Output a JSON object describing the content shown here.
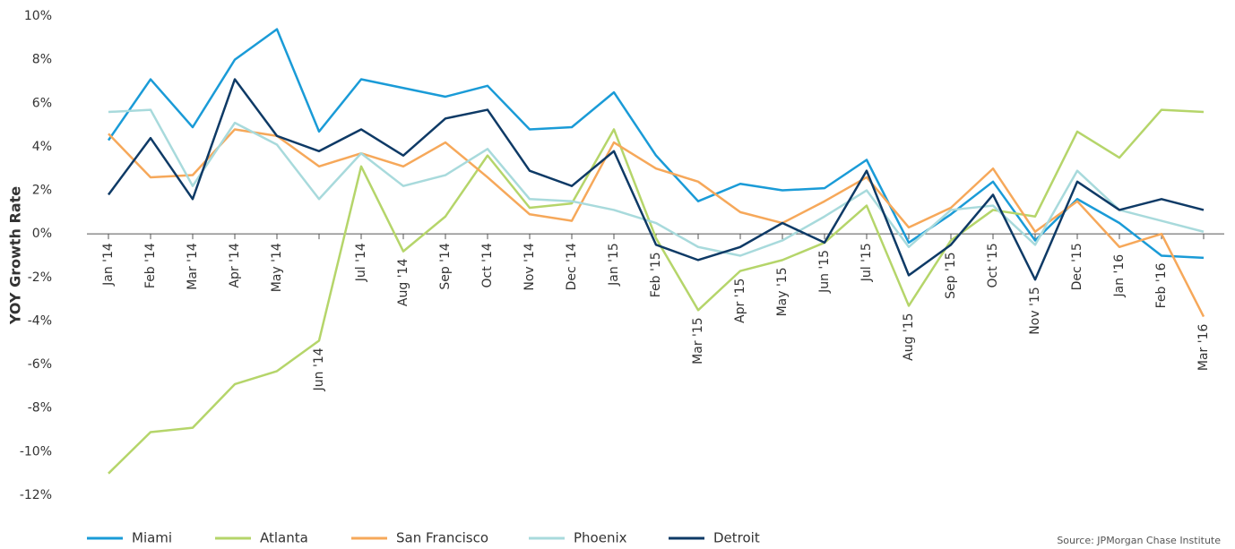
{
  "chart_data": {
    "type": "line",
    "y_label": "YOY Growth Rate",
    "source": "Source:  JPMorgan Chase Institute",
    "categories": [
      "Jan '14",
      "Feb '14",
      "Mar '14",
      "Apr '14",
      "May '14",
      "Jun '14",
      "Jul '14",
      "Aug '14",
      "Sep '14",
      "Oct '14",
      "Nov '14",
      "Dec '14",
      "Jan '15",
      "Feb '15",
      "Mar '15",
      "Apr '15",
      "May '15",
      "Jun '15",
      "Jul '15",
      "Aug '15",
      "Sep '15",
      "Oct '15",
      "Nov '15",
      "Dec '15",
      "Jan '16",
      "Feb '16",
      "Mar '16"
    ],
    "series": [
      {
        "name": "Miami",
        "color": "#1a9bd7",
        "values": [
          4.3,
          7.1,
          4.9,
          8.0,
          9.4,
          4.7,
          7.1,
          6.7,
          6.3,
          6.8,
          4.8,
          4.9,
          6.5,
          3.6,
          1.5,
          2.3,
          2.0,
          2.1,
          3.4,
          -0.4,
          0.9,
          2.4,
          -0.3,
          1.6,
          0.5,
          -1.0,
          -1.1
        ]
      },
      {
        "name": "Atlanta",
        "color": "#b5d56a",
        "values": [
          -11.0,
          -9.1,
          -8.9,
          -6.9,
          -6.3,
          -4.9,
          3.1,
          -0.8,
          0.8,
          3.6,
          1.2,
          1.4,
          4.8,
          -0.2,
          -3.5,
          -1.7,
          -1.2,
          -0.4,
          1.3,
          -3.3,
          -0.3,
          1.1,
          0.8,
          4.7,
          3.5,
          5.7,
          5.6
        ]
      },
      {
        "name": "San Francisco",
        "color": "#f6a85a",
        "values": [
          4.6,
          2.6,
          2.7,
          4.8,
          4.5,
          3.1,
          3.7,
          3.1,
          4.2,
          2.6,
          0.9,
          0.6,
          4.2,
          3.0,
          2.4,
          1.0,
          0.5,
          1.5,
          2.6,
          0.3,
          1.2,
          3.0,
          0.1,
          1.5,
          -0.6,
          0.0,
          -3.8
        ]
      },
      {
        "name": "Phoenix",
        "color": "#a8dadc",
        "values": [
          5.6,
          5.7,
          2.2,
          5.1,
          4.1,
          1.6,
          3.7,
          2.2,
          2.7,
          3.9,
          1.6,
          1.5,
          1.1,
          0.5,
          -0.6,
          -1.0,
          -0.3,
          0.8,
          2.0,
          -0.6,
          1.1,
          1.3,
          -0.5,
          2.9,
          1.1,
          0.6,
          0.1
        ]
      },
      {
        "name": "Detroit",
        "color": "#0e3a66",
        "values": [
          1.8,
          4.4,
          1.6,
          7.1,
          4.5,
          3.8,
          4.8,
          3.6,
          5.3,
          5.7,
          2.9,
          2.2,
          3.8,
          -0.5,
          -1.2,
          -0.6,
          0.5,
          -0.4,
          2.9,
          -1.9,
          -0.5,
          1.8,
          -2.1,
          2.4,
          1.1,
          1.6,
          1.1
        ]
      }
    ],
    "ylim": [
      -12,
      10
    ],
    "yticks": [
      {
        "value": 10,
        "label": "10%"
      },
      {
        "value": 8,
        "label": "8%"
      },
      {
        "value": 6,
        "label": "6%"
      },
      {
        "value": 4,
        "label": "4%"
      },
      {
        "value": 2,
        "label": "2%"
      },
      {
        "value": 0,
        "label": "0%"
      },
      {
        "value": -2,
        "label": "-2%"
      },
      {
        "value": -4,
        "label": "-4%"
      },
      {
        "value": -6,
        "label": "-6%"
      },
      {
        "value": -8,
        "label": "-8%"
      },
      {
        "value": -10,
        "label": "-10%"
      },
      {
        "value": -12,
        "label": "-12%"
      }
    ],
    "grid": false,
    "legend": "bottom"
  }
}
